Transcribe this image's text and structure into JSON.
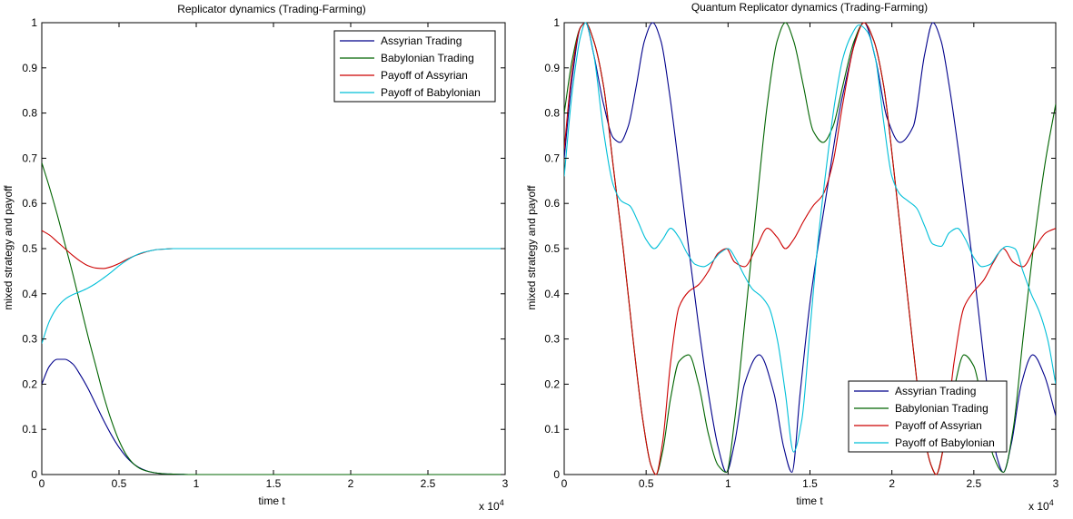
{
  "chart_data": [
    {
      "type": "line",
      "title": "Replicator dynamics (Trading-Farming)",
      "xlabel": "time t",
      "ylabel": "mixed strategy and payoff",
      "x_multiplier_label": "x 10",
      "x_multiplier_exp": "4",
      "xlim": [
        0,
        30000
      ],
      "ylim": [
        0,
        1
      ],
      "x_ticks": [
        0,
        0.5,
        1,
        1.5,
        2,
        2.5,
        3
      ],
      "y_ticks": [
        0,
        0.1,
        0.2,
        0.3,
        0.4,
        0.5,
        0.6,
        0.7,
        0.8,
        0.9,
        1
      ],
      "legend_position": "top-right",
      "grid": false,
      "series": [
        {
          "name": "Assyrian Trading",
          "color": "#00008B",
          "x": [
            0,
            500,
            1000,
            1500,
            2000,
            2500,
            3000,
            3500,
            4000,
            4500,
            5000,
            5500,
            6000,
            6500,
            7000,
            7500,
            8000,
            8500,
            9000,
            9500,
            10000,
            15000,
            20000,
            25000,
            30000
          ],
          "y": [
            0.2,
            0.24,
            0.255,
            0.255,
            0.245,
            0.22,
            0.19,
            0.155,
            0.12,
            0.088,
            0.06,
            0.038,
            0.022,
            0.012,
            0.006,
            0.003,
            0.0015,
            0.001,
            0.0005,
            0.0,
            0.0,
            0.0,
            0.0,
            0.0,
            0.0
          ]
        },
        {
          "name": "Babylonian Trading",
          "color": "#006400",
          "x": [
            0,
            500,
            1000,
            1500,
            2000,
            2500,
            3000,
            3500,
            4000,
            4500,
            5000,
            5500,
            6000,
            6500,
            7000,
            7500,
            8000,
            8500,
            9000,
            9500,
            10000,
            15000,
            20000,
            25000,
            30000
          ],
          "y": [
            0.69,
            0.635,
            0.575,
            0.51,
            0.445,
            0.375,
            0.305,
            0.24,
            0.175,
            0.12,
            0.075,
            0.042,
            0.022,
            0.011,
            0.006,
            0.003,
            0.0015,
            0.001,
            0.0005,
            0.0,
            0.0,
            0.0,
            0.0,
            0.0,
            0.0
          ]
        },
        {
          "name": "Payoff of Assyrian",
          "color": "#CC0000",
          "x": [
            0,
            500,
            1000,
            1500,
            2000,
            2500,
            3000,
            3500,
            4000,
            4500,
            5000,
            5500,
            6000,
            6500,
            7000,
            7500,
            8000,
            8500,
            9000,
            9500,
            30000
          ],
          "y": [
            0.54,
            0.53,
            0.515,
            0.5,
            0.485,
            0.472,
            0.462,
            0.457,
            0.456,
            0.46,
            0.467,
            0.476,
            0.484,
            0.49,
            0.495,
            0.498,
            0.499,
            0.5,
            0.5,
            0.5,
            0.5
          ]
        },
        {
          "name": "Payoff of Babylonian",
          "color": "#00BFD8",
          "x": [
            0,
            500,
            1000,
            1500,
            2000,
            2500,
            3000,
            3500,
            4000,
            4500,
            5000,
            5500,
            6000,
            6500,
            7000,
            7500,
            8000,
            8500,
            9000,
            9500,
            30000
          ],
          "y": [
            0.29,
            0.34,
            0.37,
            0.388,
            0.398,
            0.405,
            0.413,
            0.423,
            0.435,
            0.448,
            0.462,
            0.474,
            0.484,
            0.491,
            0.495,
            0.498,
            0.499,
            0.5,
            0.5,
            0.5,
            0.5
          ]
        }
      ]
    },
    {
      "type": "line",
      "title": "Quantum Replicator dynamics (Trading-Farming)",
      "xlabel": "time t",
      "ylabel": "mixed strategy and payoff",
      "x_multiplier_label": "x 10",
      "x_multiplier_exp": "4",
      "xlim": [
        0,
        30000
      ],
      "ylim": [
        0,
        1
      ],
      "x_ticks": [
        0,
        0.5,
        1,
        1.5,
        2,
        2.5,
        3
      ],
      "y_ticks": [
        0,
        0.1,
        0.2,
        0.3,
        0.4,
        0.5,
        0.6,
        0.7,
        0.8,
        0.9,
        1
      ],
      "legend_position": "bottom-right",
      "grid": false,
      "series": [
        {
          "name": "Assyrian Trading",
          "color": "#00008B",
          "x": [
            0,
            500,
            1000,
            1300,
            1800,
            2400,
            3000,
            3400,
            3900,
            4400,
            4900,
            5400,
            5900,
            6400,
            7000,
            7600,
            8200,
            8800,
            9400,
            9900,
            10400,
            11000,
            11900,
            12800,
            13400,
            13900,
            14400,
            15000,
            16000,
            17000,
            18300,
            19000,
            19700,
            20500,
            21300,
            22000,
            22500,
            23000,
            23500,
            24200,
            25000,
            25800,
            26400,
            26800,
            27300,
            27900,
            28600,
            29300,
            30000
          ],
          "y": [
            0.7,
            0.88,
            0.99,
            1.0,
            0.93,
            0.82,
            0.745,
            0.735,
            0.77,
            0.86,
            0.96,
            1.0,
            0.96,
            0.85,
            0.68,
            0.5,
            0.33,
            0.18,
            0.06,
            0.005,
            0.07,
            0.2,
            0.265,
            0.18,
            0.06,
            0.005,
            0.18,
            0.38,
            0.62,
            0.84,
            1.0,
            0.92,
            0.79,
            0.735,
            0.77,
            0.93,
            1.0,
            0.96,
            0.86,
            0.68,
            0.45,
            0.2,
            0.04,
            0.005,
            0.07,
            0.2,
            0.265,
            0.22,
            0.13
          ]
        },
        {
          "name": "Babylonian Trading",
          "color": "#006400",
          "x": [
            0,
            500,
            1000,
            1300,
            1800,
            2400,
            3000,
            3600,
            4200,
            4800,
            5300,
            5600,
            6000,
            6500,
            7000,
            7600,
            8200,
            8800,
            9400,
            9900,
            10400,
            11000,
            11700,
            12400,
            13000,
            13500,
            14000,
            14600,
            15200,
            15800,
            16400,
            17000,
            17700,
            18300,
            18900,
            19500,
            20100,
            20700,
            21300,
            21900,
            22400,
            22700,
            23200,
            23800,
            24400,
            25000,
            25600,
            26200,
            26800,
            27400,
            28000,
            28700,
            29400,
            30000
          ],
          "y": [
            0.8,
            0.92,
            0.99,
            1.0,
            0.96,
            0.86,
            0.68,
            0.5,
            0.3,
            0.12,
            0.02,
            0.0,
            0.05,
            0.17,
            0.25,
            0.265,
            0.2,
            0.09,
            0.02,
            0.005,
            0.12,
            0.33,
            0.58,
            0.82,
            0.96,
            1.0,
            0.96,
            0.86,
            0.76,
            0.735,
            0.77,
            0.86,
            0.96,
            1.0,
            0.96,
            0.86,
            0.68,
            0.48,
            0.28,
            0.1,
            0.02,
            0.0,
            0.07,
            0.19,
            0.265,
            0.24,
            0.14,
            0.04,
            0.005,
            0.1,
            0.3,
            0.52,
            0.7,
            0.82
          ]
        },
        {
          "name": "Payoff of Assyrian",
          "color": "#CC0000",
          "x": [
            0,
            500,
            1000,
            1300,
            1800,
            2400,
            3000,
            3600,
            4200,
            4800,
            5300,
            5600,
            6000,
            6500,
            7000,
            7600,
            8200,
            8800,
            9400,
            9900,
            10400,
            11000,
            11700,
            12400,
            13000,
            13500,
            14000,
            14600,
            15200,
            15800,
            16400,
            17000,
            17700,
            18300,
            18900,
            19500,
            20100,
            20700,
            21300,
            21900,
            22400,
            22700,
            23200,
            23800,
            24400,
            25000,
            25600,
            26200,
            26800,
            27400,
            28000,
            28700,
            29400,
            30000
          ],
          "y": [
            0.72,
            0.9,
            0.99,
            1.0,
            0.96,
            0.86,
            0.68,
            0.5,
            0.3,
            0.12,
            0.02,
            0.0,
            0.07,
            0.25,
            0.37,
            0.405,
            0.42,
            0.45,
            0.49,
            0.5,
            0.47,
            0.46,
            0.5,
            0.545,
            0.525,
            0.5,
            0.52,
            0.56,
            0.595,
            0.62,
            0.69,
            0.82,
            0.95,
            1.0,
            0.96,
            0.86,
            0.68,
            0.48,
            0.28,
            0.1,
            0.02,
            0.0,
            0.07,
            0.25,
            0.37,
            0.405,
            0.43,
            0.47,
            0.5,
            0.47,
            0.46,
            0.5,
            0.535,
            0.545
          ]
        },
        {
          "name": "Payoff of Babylonian",
          "color": "#00BFD8",
          "x": [
            0,
            500,
            1000,
            1300,
            1800,
            2400,
            3000,
            3500,
            4000,
            4500,
            5000,
            5500,
            6000,
            6500,
            7000,
            7500,
            8000,
            8500,
            9000,
            9500,
            10000,
            10500,
            11000,
            11500,
            12000,
            12500,
            13000,
            13500,
            14000,
            14500,
            15000,
            15500,
            16000,
            16500,
            17000,
            17500,
            18000,
            18500,
            19000,
            19500,
            20000,
            20500,
            21000,
            21500,
            22000,
            22500,
            23000,
            23500,
            24000,
            24500,
            25000,
            25500,
            26000,
            26500,
            27000,
            27500,
            28000,
            28500,
            29000,
            29500,
            30000
          ],
          "y": [
            0.66,
            0.85,
            0.97,
            1.0,
            0.93,
            0.76,
            0.64,
            0.605,
            0.595,
            0.56,
            0.52,
            0.5,
            0.52,
            0.545,
            0.525,
            0.49,
            0.465,
            0.46,
            0.47,
            0.49,
            0.5,
            0.475,
            0.44,
            0.41,
            0.395,
            0.37,
            0.3,
            0.18,
            0.05,
            0.12,
            0.32,
            0.52,
            0.68,
            0.82,
            0.92,
            0.97,
            0.995,
            0.98,
            0.92,
            0.78,
            0.66,
            0.62,
            0.605,
            0.59,
            0.55,
            0.51,
            0.505,
            0.535,
            0.545,
            0.52,
            0.48,
            0.46,
            0.465,
            0.49,
            0.505,
            0.5,
            0.45,
            0.4,
            0.36,
            0.3,
            0.2
          ]
        }
      ]
    }
  ]
}
